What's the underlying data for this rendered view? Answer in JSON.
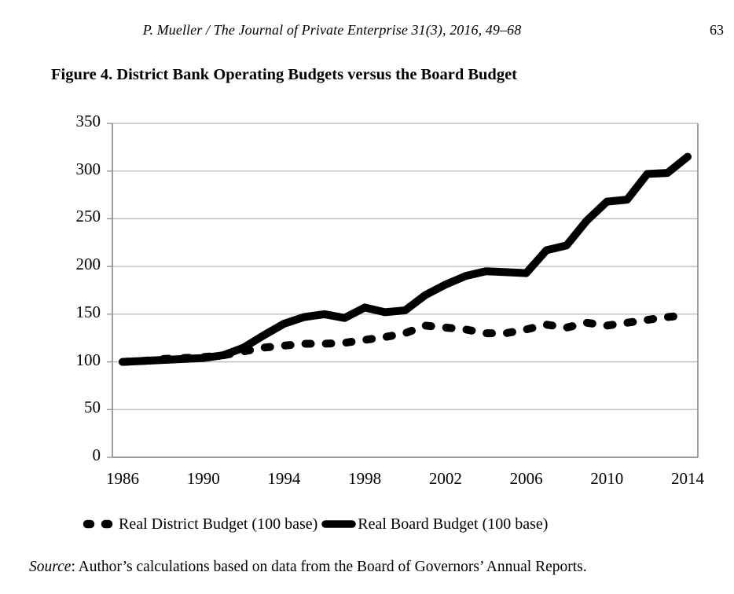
{
  "page": {
    "running_head": "P. Mueller / The Journal of Private Enterprise 31(3), 2016, 49–68",
    "page_number": "63",
    "source_label": "Source",
    "source_text": ": Author’s calculations based on data from the Board of Governors’ Annual Reports."
  },
  "chart_data": {
    "type": "line",
    "title": "Figure 4. District Bank Operating Budgets versus the Board Budget",
    "x": [
      1986,
      1987,
      1988,
      1989,
      1990,
      1991,
      1992,
      1993,
      1994,
      1995,
      1996,
      1997,
      1998,
      1999,
      2000,
      2001,
      2002,
      2003,
      2004,
      2005,
      2006,
      2007,
      2008,
      2009,
      2010,
      2011,
      2012,
      2013,
      2014
    ],
    "xticks": [
      1986,
      1990,
      1994,
      1998,
      2002,
      2006,
      2010,
      2014
    ],
    "yticks": [
      0,
      50,
      100,
      150,
      200,
      250,
      300,
      350
    ],
    "ylim": [
      0,
      350
    ],
    "grid": "horizontal",
    "legend_position": "bottom",
    "series": [
      {
        "name": "Real District Budget (100 base)",
        "style": "dashed",
        "color": "#000000",
        "values": [
          100,
          101,
          103,
          104,
          105,
          107,
          111,
          115,
          117,
          119,
          119,
          120,
          123,
          126,
          130,
          138,
          136,
          134,
          130,
          130,
          134,
          139,
          136,
          141,
          138,
          141,
          144,
          147,
          149
        ]
      },
      {
        "name": "Real Board Budget (100 base)",
        "style": "solid",
        "color": "#000000",
        "values": [
          100,
          101,
          102,
          103,
          104,
          107,
          115,
          128,
          140,
          147,
          150,
          146,
          157,
          152,
          154,
          170,
          181,
          190,
          195,
          194,
          193,
          217,
          222,
          248,
          268,
          270,
          297,
          298,
          315
        ]
      }
    ]
  }
}
